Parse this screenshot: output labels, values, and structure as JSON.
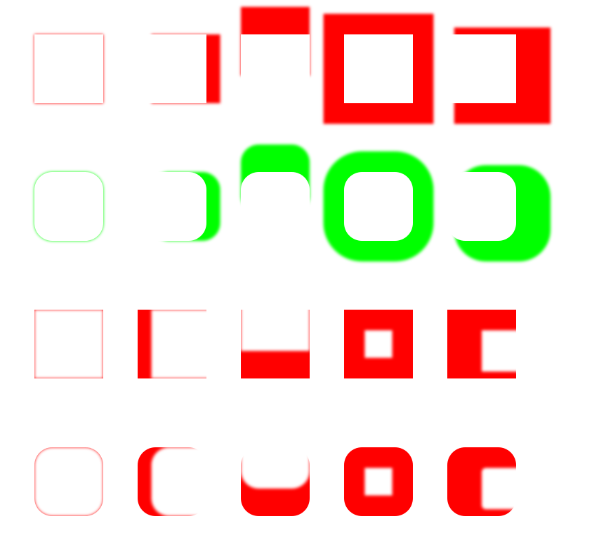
{
  "colors": {
    "outer_shadow_square": "#ff0000",
    "outer_shadow_rounded": "#00ff00",
    "inset_shadow_square": "#ff0000",
    "inset_shadow_rounded": "#ff0000",
    "box_fill": "#ffffff",
    "background": "#ffffff"
  },
  "rows": [
    {
      "name": "outer-shadow-square-row",
      "shape": "square",
      "kind": "outer",
      "color_key": "outer_shadow_square"
    },
    {
      "name": "outer-shadow-rounded-row",
      "shape": "rounded",
      "kind": "outer",
      "color_key": "outer_shadow_rounded"
    },
    {
      "name": "inset-shadow-square-row",
      "shape": "square",
      "kind": "inset",
      "color_key": "inset_shadow_square"
    },
    {
      "name": "inset-shadow-rounded-row",
      "shape": "rounded",
      "kind": "inset",
      "color_key": "inset_shadow_rounded"
    }
  ]
}
